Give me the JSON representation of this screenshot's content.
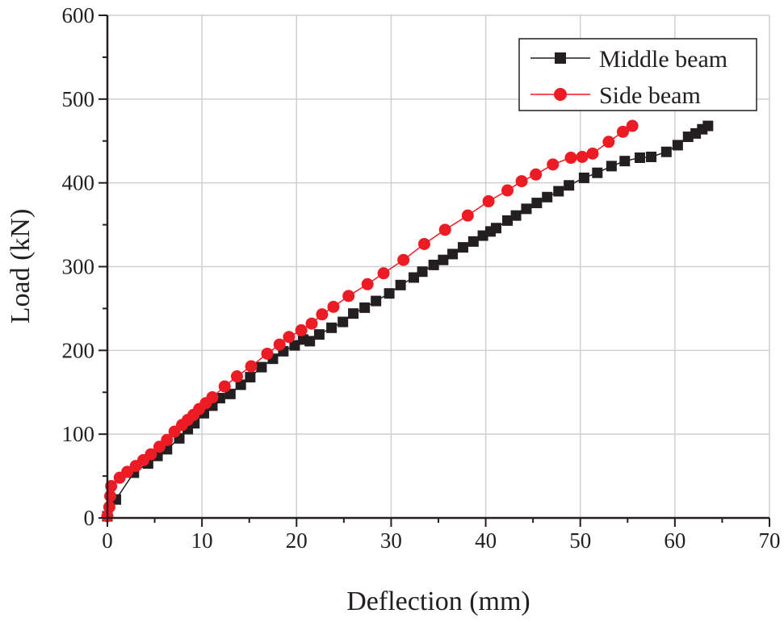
{
  "chart_data": {
    "type": "line",
    "title": "",
    "xlabel": "Deflection (mm)",
    "ylabel": "Load (kN)",
    "xlim": [
      0,
      70
    ],
    "ylim": [
      0,
      600
    ],
    "xticks": [
      "0",
      "10",
      "20",
      "30",
      "40",
      "50",
      "60",
      "70"
    ],
    "yticks": [
      "0",
      "100",
      "200",
      "300",
      "400",
      "500",
      "600"
    ],
    "grid": true,
    "legend_position": "top-right",
    "series": [
      {
        "name": "Middle beam",
        "color": "#231f20",
        "marker": "square",
        "x": [
          0,
          0.9,
          2.8,
          4.3,
          5.3,
          6.3,
          7.6,
          8.5,
          9.2,
          10.2,
          11.1,
          11.9,
          13,
          14.1,
          15.1,
          16.3,
          17.5,
          18.6,
          19.8,
          20.7,
          21.4,
          22.4,
          23.7,
          24.9,
          26,
          27.2,
          28.4,
          29.8,
          31,
          32.4,
          33.3,
          34.5,
          35.5,
          36.5,
          37.6,
          38.7,
          39.7,
          40.5,
          41.1,
          42.3,
          43.2,
          44.3,
          45.4,
          46.5,
          47.7,
          48.8,
          50.4,
          51.8,
          53.3,
          54.7,
          56.3,
          57.5,
          59.1,
          60.3,
          61.4,
          62.2,
          62.9,
          63.5
        ],
        "y": [
          2,
          22,
          54,
          65,
          74,
          82,
          95,
          106,
          113,
          125,
          134,
          143,
          148,
          159,
          168,
          180,
          190,
          199,
          206,
          213,
          211,
          219,
          227,
          234,
          244,
          251,
          259,
          268,
          278,
          287,
          294,
          302,
          308,
          315,
          323,
          330,
          337,
          342,
          346,
          355,
          361,
          369,
          376,
          383,
          390,
          397,
          406,
          412,
          420,
          426,
          430,
          431,
          437,
          445,
          455,
          459,
          464,
          468
        ]
      },
      {
        "name": "Side beam",
        "color": "#ed1c24",
        "marker": "circle",
        "x": [
          0,
          0.2,
          0.3,
          0.4,
          1.3,
          2.1,
          3,
          3.8,
          4.6,
          5.5,
          6.3,
          7.1,
          7.9,
          8.5,
          9.1,
          9.7,
          10.4,
          11.1,
          12.4,
          13.7,
          15.2,
          16.9,
          18.2,
          19.2,
          20.5,
          21.6,
          22.7,
          23.9,
          25.5,
          27.5,
          29.2,
          31.3,
          33.5,
          35.7,
          38.1,
          40.3,
          42.3,
          43.8,
          45.3,
          47.1,
          49,
          50.2,
          51.3,
          53,
          54.5,
          55.5
        ],
        "y": [
          2,
          13,
          26,
          38,
          48,
          55,
          62,
          69,
          76,
          85,
          93,
          103,
          111,
          117,
          123,
          130,
          137,
          144,
          157,
          169,
          181,
          196,
          207,
          216,
          224,
          232,
          243,
          252,
          265,
          279,
          292,
          308,
          327,
          344,
          361,
          378,
          391,
          402,
          410,
          422,
          430,
          431,
          435,
          449,
          461,
          468
        ]
      }
    ]
  }
}
